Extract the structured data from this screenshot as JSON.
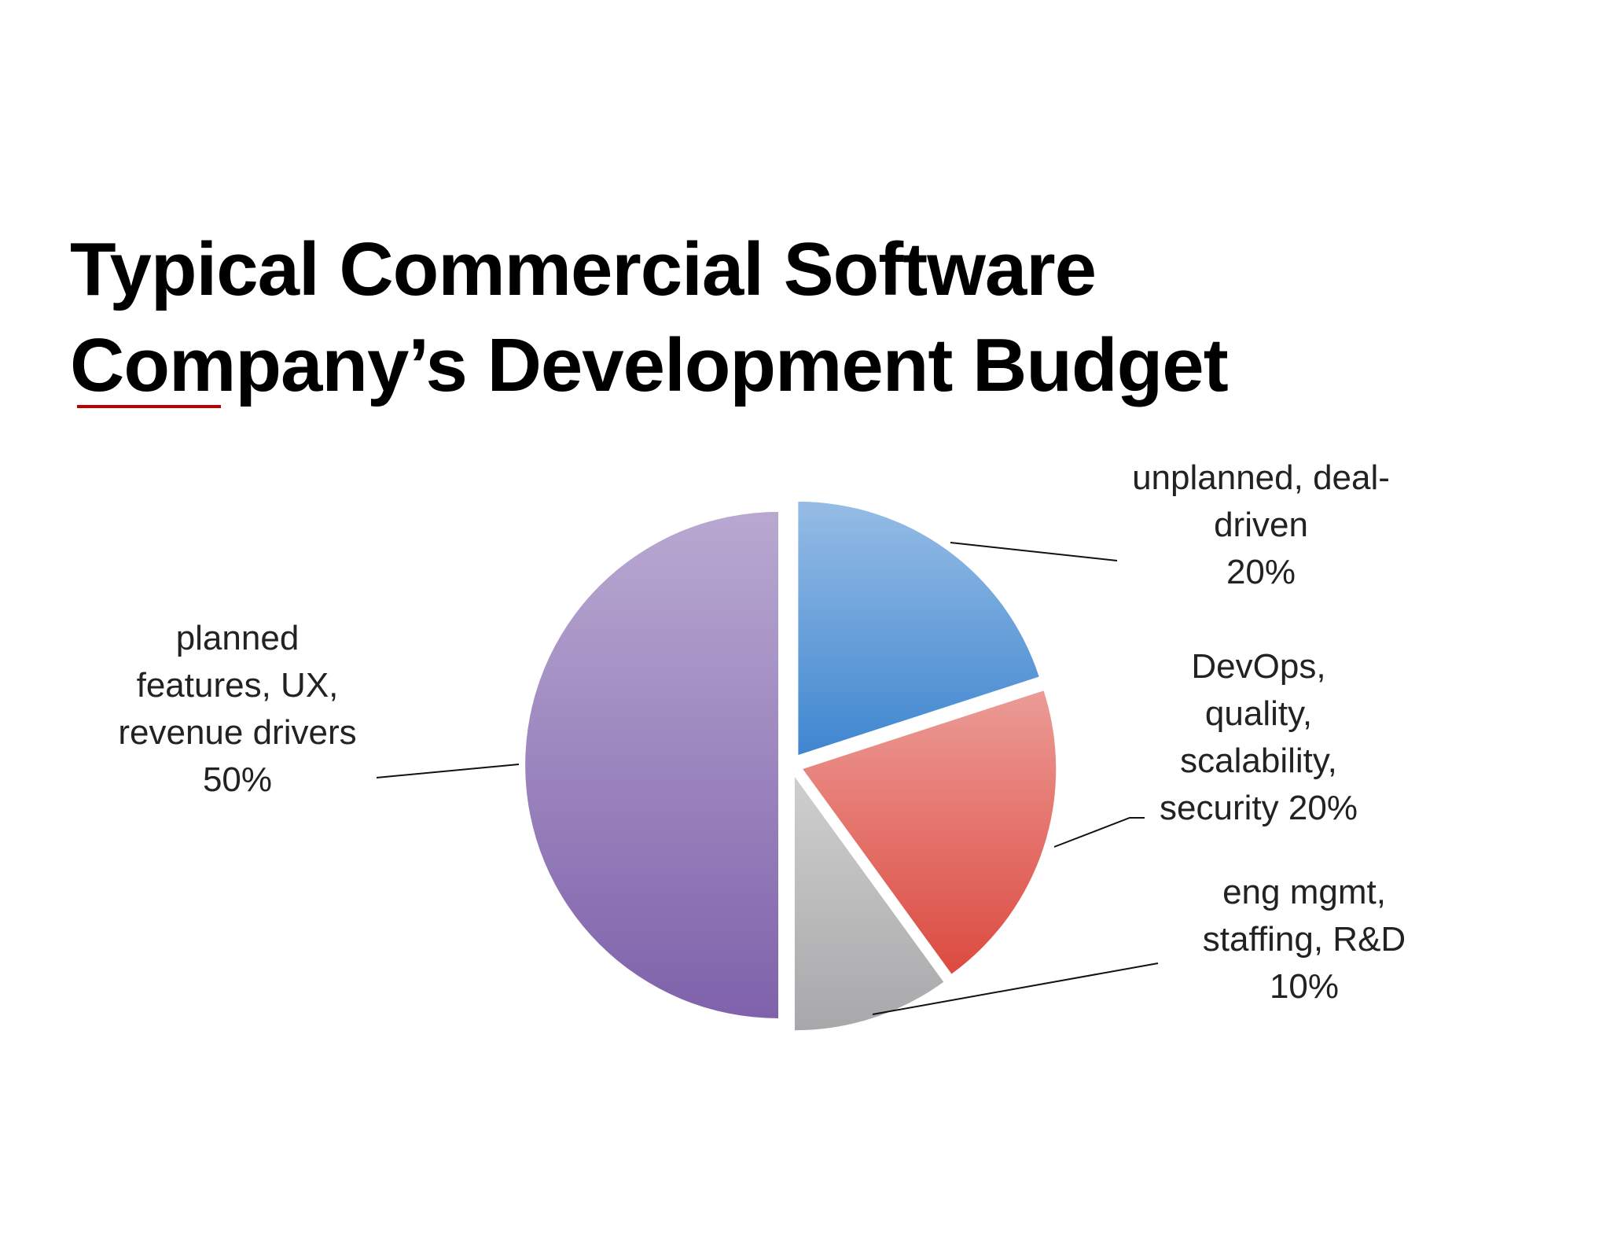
{
  "chart_data": {
    "type": "pie",
    "title": "Typical Commercial Software Company’s Development Budget",
    "categories": [
      "unplanned, deal-driven",
      "DevOps, quality, scalability, security",
      "eng mgmt, staffing, R&D",
      "planned features, UX, revenue drivers"
    ],
    "values": [
      20,
      20,
      10,
      50
    ],
    "value_labels": [
      "20%",
      "20%",
      "10%",
      "50%"
    ],
    "colors": [
      "#3f86d0",
      "#dc4a40",
      "#a8a7a9",
      "#7f62ab"
    ]
  }
}
